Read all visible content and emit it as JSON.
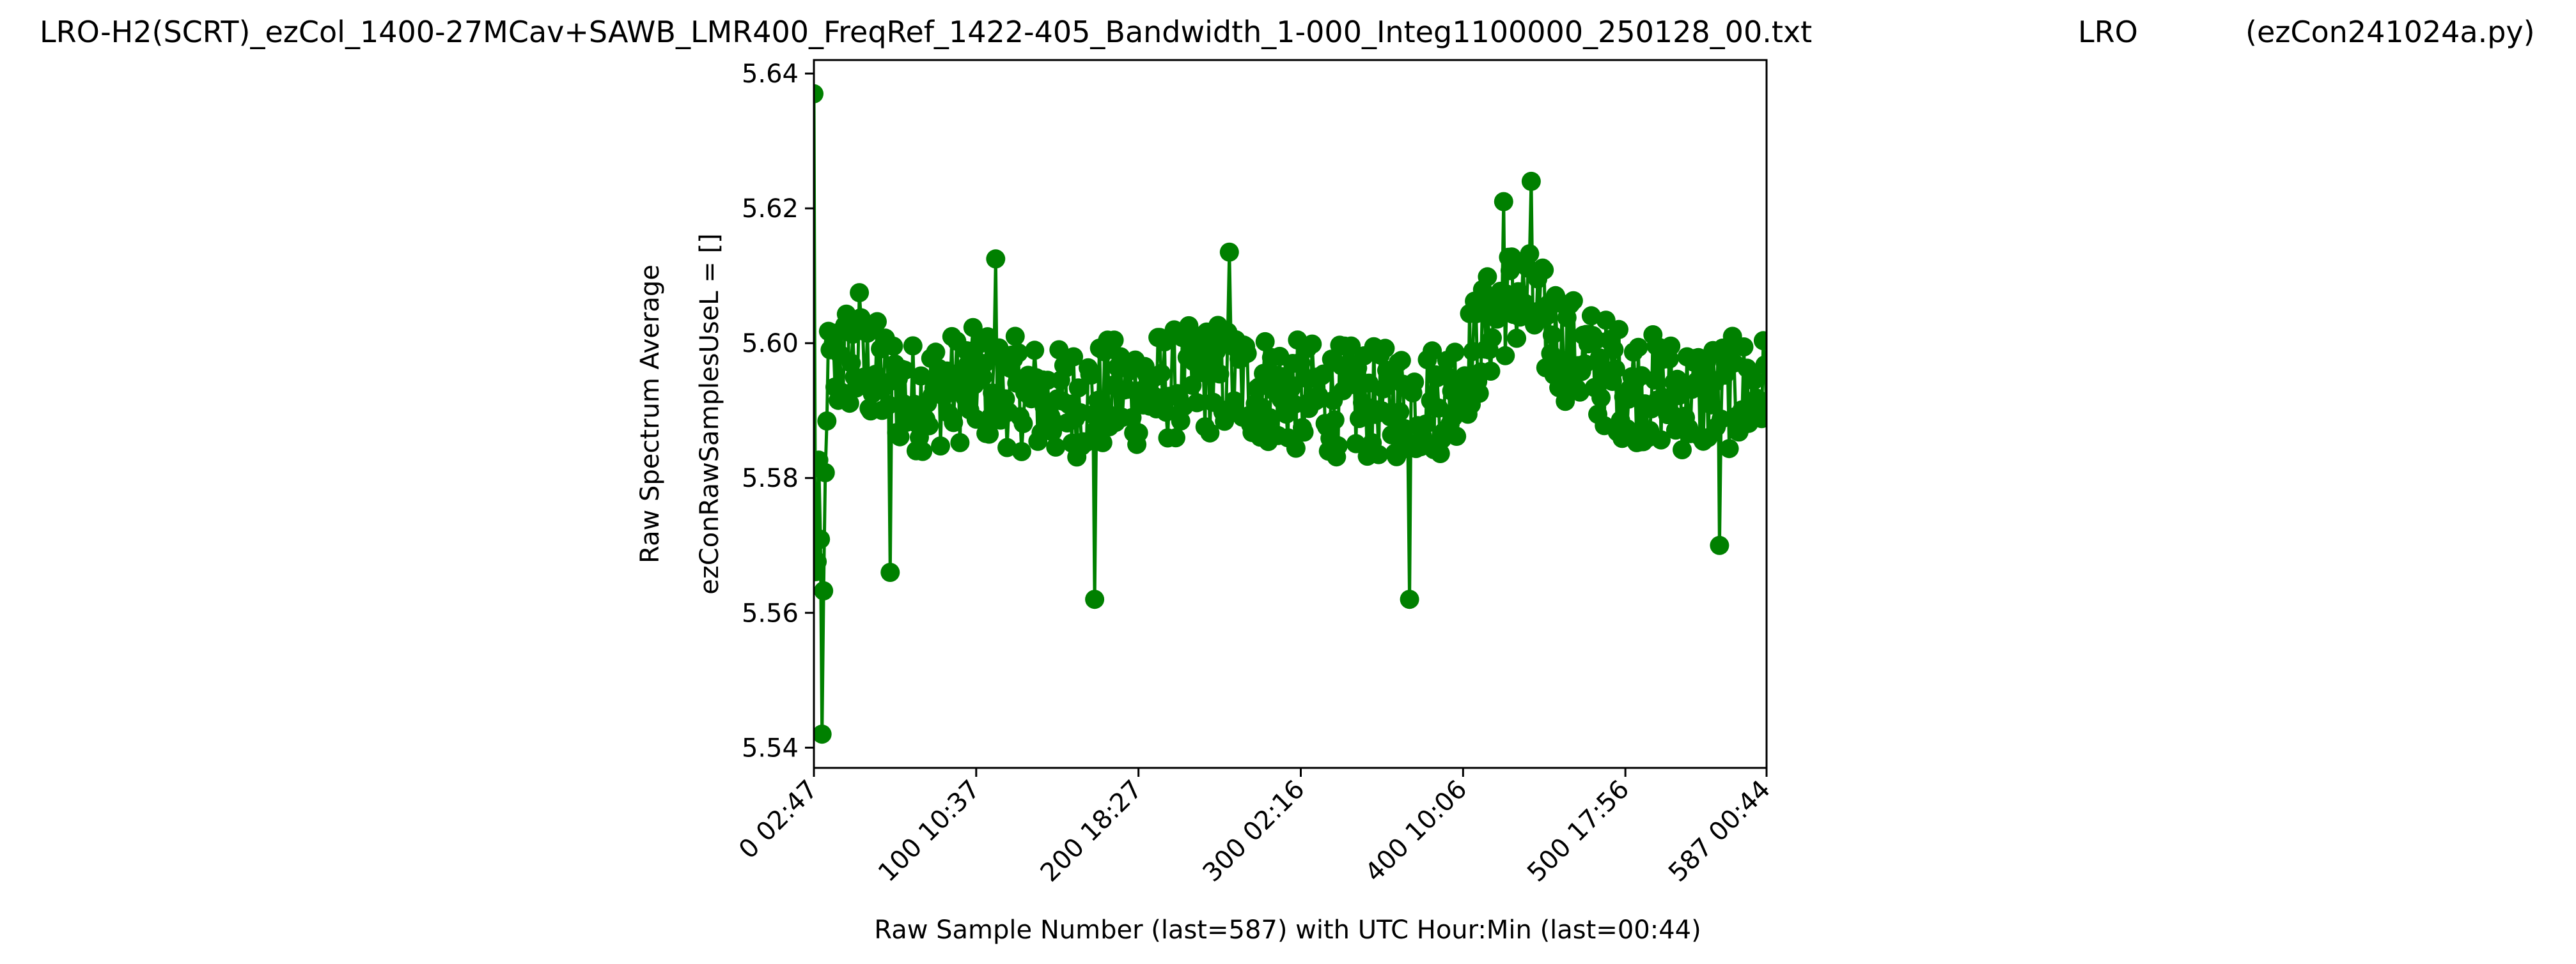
{
  "chart_data": {
    "type": "line",
    "title_left": "LRO-H2(SCRT)_ezCol_1400-27MCav+SAWB_LMR400_FreqRef_1422-405_Bandwidth_1-000_Integ1100000_250128_00.txt",
    "title_center": "LRO",
    "title_right": "(ezCon241024a.py)",
    "xlabel": "Raw Sample Number (last=587) with UTC Hour:Min (last=00:44)",
    "ylabel_line1": "Raw Spectrum Average",
    "ylabel_line2": "ezConRawSamplesUseL = []",
    "xlim": [
      0,
      587
    ],
    "ylim": [
      5.537,
      5.642
    ],
    "x_ticks": [
      {
        "value": 0,
        "label": "0  02:47"
      },
      {
        "value": 100,
        "label": "100  10:37"
      },
      {
        "value": 200,
        "label": "200  18:27"
      },
      {
        "value": 300,
        "label": "300  02:16"
      },
      {
        "value": 400,
        "label": "400  10:06"
      },
      {
        "value": 500,
        "label": "500  17:56"
      },
      {
        "value": 587,
        "label": "587  00:44"
      }
    ],
    "y_ticks": [
      {
        "value": 5.54,
        "label": "5.54"
      },
      {
        "value": 5.56,
        "label": "5.56"
      },
      {
        "value": 5.58,
        "label": "5.58"
      },
      {
        "value": 5.6,
        "label": "5.60"
      },
      {
        "value": 5.62,
        "label": "5.62"
      },
      {
        "value": 5.64,
        "label": "5.64"
      }
    ],
    "series": [
      {
        "color": "#008000",
        "marker": "circle",
        "anchors": [
          {
            "x": 0,
            "y": 5.637
          },
          {
            "x": 1,
            "y": 5.563
          },
          {
            "x": 3,
            "y": 5.58
          },
          {
            "x": 5,
            "y": 5.542
          },
          {
            "x": 8,
            "y": 5.595
          },
          {
            "x": 20,
            "y": 5.598
          },
          {
            "x": 60,
            "y": 5.592
          },
          {
            "x": 100,
            "y": 5.594
          },
          {
            "x": 150,
            "y": 5.591
          },
          {
            "x": 200,
            "y": 5.593
          },
          {
            "x": 250,
            "y": 5.595
          },
          {
            "x": 300,
            "y": 5.592
          },
          {
            "x": 350,
            "y": 5.591
          },
          {
            "x": 390,
            "y": 5.592
          },
          {
            "x": 410,
            "y": 5.6
          },
          {
            "x": 425,
            "y": 5.606
          },
          {
            "x": 435,
            "y": 5.607
          },
          {
            "x": 450,
            "y": 5.603
          },
          {
            "x": 470,
            "y": 5.598
          },
          {
            "x": 500,
            "y": 5.594
          },
          {
            "x": 540,
            "y": 5.592
          },
          {
            "x": 587,
            "y": 5.593
          }
        ],
        "noise_amplitude": 0.0085,
        "features": [
          {
            "x": 0,
            "y": 5.637
          },
          {
            "x": 5,
            "y": 5.542
          },
          {
            "x": 47,
            "y": 5.566
          },
          {
            "x": 173,
            "y": 5.562
          },
          {
            "x": 367,
            "y": 5.562
          },
          {
            "x": 442,
            "y": 5.624
          },
          {
            "x": 425,
            "y": 5.621
          },
          {
            "x": 256,
            "y": 5.6135
          },
          {
            "x": 112,
            "y": 5.6125
          },
          {
            "x": 558,
            "y": 5.57
          },
          {
            "x": 28,
            "y": 5.6075
          }
        ]
      }
    ]
  }
}
